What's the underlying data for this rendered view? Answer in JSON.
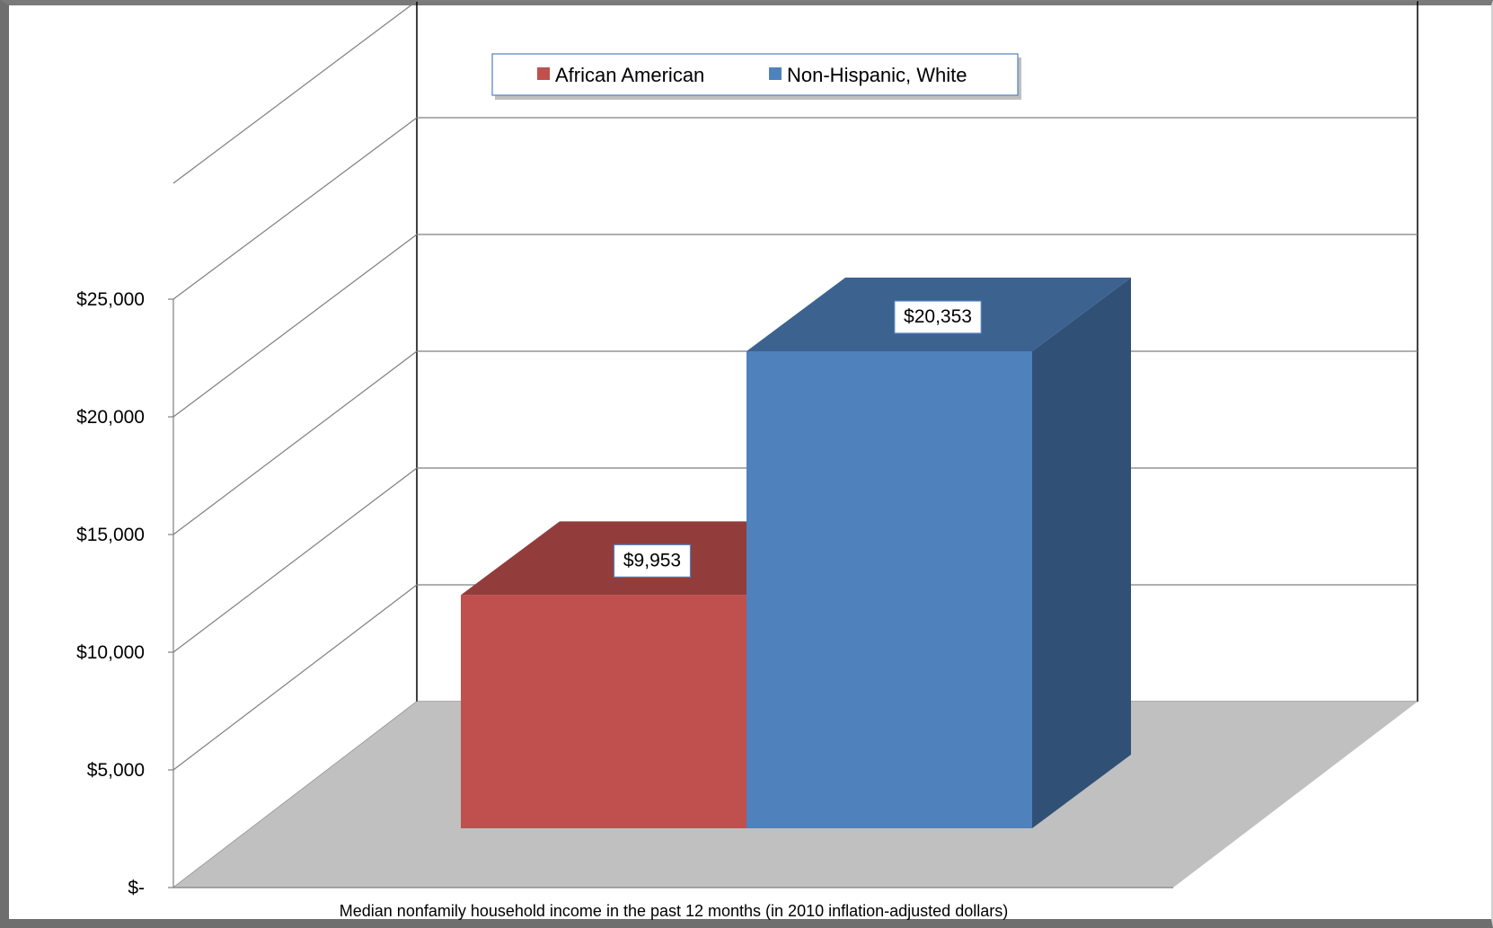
{
  "chart_data": {
    "type": "bar",
    "categories": [
      ""
    ],
    "series": [
      {
        "name": "African American",
        "values": [
          9953
        ],
        "label": "$9,953"
      },
      {
        "name": "Non-Hispanic, White",
        "values": [
          20353
        ],
        "label": "$20,353"
      }
    ],
    "title": "",
    "xlabel": "Median nonfamily household income in the past 12 months (in 2010 inflation-adjusted dollars)",
    "ylabel": "",
    "ylim": [
      0,
      25000
    ],
    "yticks": [
      {
        "value": 0,
        "label": "$-"
      },
      {
        "value": 5000,
        "label": "$5,000"
      },
      {
        "value": 10000,
        "label": "$10,000"
      },
      {
        "value": 15000,
        "label": "$15,000"
      },
      {
        "value": 20000,
        "label": "$20,000"
      },
      {
        "value": 25000,
        "label": "$25,000"
      }
    ],
    "grid": true,
    "legend_position": "top",
    "style": "3d-clustered-column"
  },
  "colors": {
    "african_american": "#c0504d",
    "non_hispanic_white": "#4f81bd",
    "floor": "#c0c0c0",
    "grid": "#7f7f7f"
  }
}
